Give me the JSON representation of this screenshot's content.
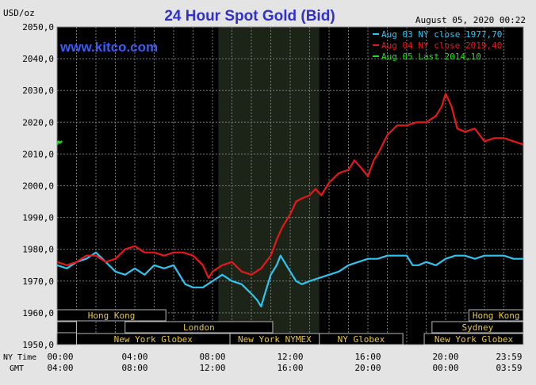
{
  "chart_data": {
    "type": "line",
    "title": "24 Hour Spot Gold (Bid)",
    "watermark": "www.kitco.com",
    "timestamp": "August 05, 2020 00:22",
    "ylabel": "USD/oz",
    "ylim": [
      1950,
      2050
    ],
    "yticks": [
      "2050,0",
      "2040,0",
      "2030,0",
      "2020,0",
      "2010,0",
      "2000,0",
      "1990,0",
      "1980,0",
      "1970,0",
      "1960,0",
      "1950,0"
    ],
    "xlim_hours": [
      0,
      24
    ],
    "xticks": [
      {
        "hour": 0,
        "ny": "00:00",
        "gmt": "04:00"
      },
      {
        "hour": 4,
        "ny": "04:00",
        "gmt": "08:00"
      },
      {
        "hour": 8,
        "ny": "08:00",
        "gmt": "12:00"
      },
      {
        "hour": 12,
        "ny": "12:00",
        "gmt": "16:00"
      },
      {
        "hour": 16,
        "ny": "16:00",
        "gmt": "20:00"
      },
      {
        "hour": 20,
        "ny": "20:00",
        "gmt": "00:00"
      },
      {
        "hour": 23.983,
        "ny": "23:59",
        "gmt": "03:59"
      }
    ],
    "ny_time_label": "NY Time",
    "gmt_label": "GMT",
    "shaded_session_hours": [
      8.3,
      13.5
    ],
    "grid": true,
    "legend_position": "top-right",
    "series": [
      {
        "name": "Aug 03 NY close 1977,70",
        "color": "#2ec6f0",
        "points": [
          [
            0,
            1975
          ],
          [
            0.5,
            1974
          ],
          [
            1,
            1976
          ],
          [
            1.5,
            1977
          ],
          [
            2,
            1979
          ],
          [
            2.5,
            1976
          ],
          [
            3,
            1973
          ],
          [
            3.5,
            1972
          ],
          [
            4,
            1974
          ],
          [
            4.5,
            1972
          ],
          [
            5,
            1975
          ],
          [
            5.5,
            1974
          ],
          [
            6,
            1975
          ],
          [
            6.3,
            1972
          ],
          [
            6.6,
            1969
          ],
          [
            7,
            1968
          ],
          [
            7.5,
            1968
          ],
          [
            8,
            1970
          ],
          [
            8.5,
            1972
          ],
          [
            9,
            1970
          ],
          [
            9.5,
            1969
          ],
          [
            10,
            1966
          ],
          [
            10.3,
            1964
          ],
          [
            10.5,
            1962
          ],
          [
            10.7,
            1966
          ],
          [
            11,
            1972
          ],
          [
            11.3,
            1975
          ],
          [
            11.5,
            1978
          ],
          [
            11.8,
            1975
          ],
          [
            12,
            1973
          ],
          [
            12.3,
            1970
          ],
          [
            12.6,
            1969
          ],
          [
            13,
            1970
          ],
          [
            13.5,
            1971
          ],
          [
            14,
            1972
          ],
          [
            14.5,
            1973
          ],
          [
            15,
            1975
          ],
          [
            15.5,
            1976
          ],
          [
            16,
            1977
          ],
          [
            16.5,
            1977
          ],
          [
            17,
            1978
          ],
          [
            17.5,
            1978
          ],
          [
            18,
            1978
          ],
          [
            18.3,
            1975
          ],
          [
            18.6,
            1975
          ],
          [
            19,
            1976
          ],
          [
            19.5,
            1975
          ],
          [
            20,
            1977
          ],
          [
            20.5,
            1978
          ],
          [
            21,
            1978
          ],
          [
            21.5,
            1977
          ],
          [
            22,
            1978
          ],
          [
            22.5,
            1978
          ],
          [
            23,
            1978
          ],
          [
            23.5,
            1977
          ],
          [
            24,
            1977
          ]
        ]
      },
      {
        "name": "Aug 04 NY close 2019,40",
        "color": "#e81818",
        "points": [
          [
            0,
            1976
          ],
          [
            0.5,
            1975
          ],
          [
            1,
            1976
          ],
          [
            1.5,
            1978
          ],
          [
            2,
            1978
          ],
          [
            2.5,
            1976
          ],
          [
            3,
            1977
          ],
          [
            3.5,
            1980
          ],
          [
            4,
            1981
          ],
          [
            4.5,
            1979
          ],
          [
            5,
            1979
          ],
          [
            5.5,
            1978
          ],
          [
            6,
            1979
          ],
          [
            6.5,
            1979
          ],
          [
            7,
            1978
          ],
          [
            7.5,
            1975
          ],
          [
            7.8,
            1971
          ],
          [
            8,
            1973
          ],
          [
            8.5,
            1975
          ],
          [
            9,
            1976
          ],
          [
            9.5,
            1973
          ],
          [
            10,
            1972
          ],
          [
            10.5,
            1974
          ],
          [
            11,
            1978
          ],
          [
            11.3,
            1983
          ],
          [
            11.6,
            1987
          ],
          [
            12,
            1991
          ],
          [
            12.3,
            1995
          ],
          [
            12.6,
            1996
          ],
          [
            13,
            1997
          ],
          [
            13.3,
            1999
          ],
          [
            13.6,
            1997
          ],
          [
            14,
            2001
          ],
          [
            14.5,
            2004
          ],
          [
            15,
            2005
          ],
          [
            15.3,
            2008
          ],
          [
            15.6,
            2006
          ],
          [
            16,
            2003
          ],
          [
            16.3,
            2008
          ],
          [
            16.6,
            2011
          ],
          [
            17,
            2016
          ],
          [
            17.5,
            2019
          ],
          [
            18,
            2019
          ],
          [
            18.5,
            2020
          ],
          [
            19,
            2020
          ],
          [
            19.5,
            2022
          ],
          [
            19.8,
            2025
          ],
          [
            20,
            2029
          ],
          [
            20.3,
            2025
          ],
          [
            20.6,
            2018
          ],
          [
            21,
            2017
          ],
          [
            21.5,
            2018
          ],
          [
            22,
            2014
          ],
          [
            22.5,
            2015
          ],
          [
            23,
            2015
          ],
          [
            23.5,
            2014
          ],
          [
            24,
            2013
          ]
        ]
      },
      {
        "name": "Aug 05 Last 2014,10",
        "color": "#22dd22",
        "points": [
          [
            0,
            2013
          ],
          [
            0.08,
            2014
          ],
          [
            0.15,
            2013.5
          ],
          [
            0.25,
            2014.1
          ]
        ]
      }
    ],
    "sessions": [
      {
        "name": "Hong Kong",
        "row": 1,
        "start": 0,
        "end": 5.6
      },
      {
        "name": "Hong Kong",
        "row": 1,
        "start": 21.2,
        "end": 24
      },
      {
        "name": "",
        "row": 2,
        "start": 0,
        "end": 1
      },
      {
        "name": "London",
        "row": 2,
        "start": 3.5,
        "end": 11.1
      },
      {
        "name": "Sydney",
        "row": 2,
        "start": 19.3,
        "end": 24
      },
      {
        "name": "New York Globex",
        "row": 3,
        "start": 1,
        "end": 8.9
      },
      {
        "name": "New York NYMEX",
        "row": 3,
        "start": 8.9,
        "end": 13.5
      },
      {
        "name": "NY Globex",
        "row": 3,
        "start": 13.5,
        "end": 17.8
      },
      {
        "name": "New York Globex",
        "row": 3,
        "start": 18.9,
        "end": 24
      }
    ]
  }
}
